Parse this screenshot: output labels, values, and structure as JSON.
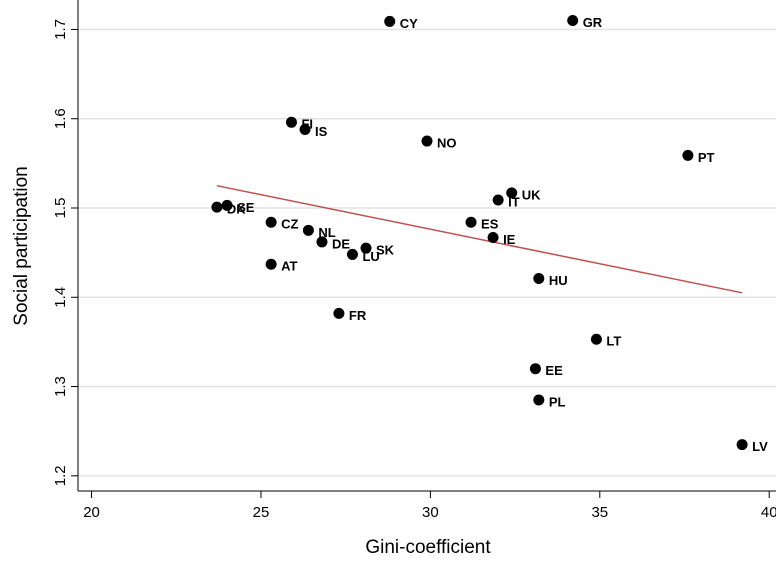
{
  "chart_data": {
    "type": "scatter",
    "x_label": "Gini-coefficient",
    "y_label": "Social participation",
    "labels": [
      "CY",
      "GR",
      "FI",
      "IS",
      "NO",
      "PT",
      "UK",
      "IT",
      "DK",
      "SE",
      "CZ",
      "ES",
      "NL",
      "IE",
      "DE",
      "SK",
      "LU",
      "AT",
      "HU",
      "FR",
      "LT",
      "EE",
      "PL",
      "LV"
    ],
    "x": [
      28.8,
      34.2,
      25.9,
      26.3,
      29.9,
      37.6,
      32.4,
      32.0,
      23.7,
      24.0,
      25.3,
      31.2,
      26.4,
      31.85,
      26.8,
      28.1,
      27.7,
      25.3,
      33.2,
      27.3,
      34.9,
      33.1,
      33.2,
      39.2
    ],
    "values": [
      1.709,
      1.71,
      1.596,
      1.588,
      1.575,
      1.559,
      1.517,
      1.509,
      1.501,
      1.503,
      1.484,
      1.484,
      1.475,
      1.467,
      1.462,
      1.455,
      1.448,
      1.437,
      1.421,
      1.382,
      1.353,
      1.32,
      1.285,
      1.235
    ],
    "color": "#000000",
    "fit": {
      "x": [
        23.7,
        39.2
      ],
      "y": [
        1.525,
        1.405
      ],
      "color": "#c0504d"
    },
    "xlim": [
      19.6,
      40.2
    ],
    "ylim": [
      1.183,
      1.733
    ],
    "xticks": [
      20,
      25,
      30,
      35,
      40
    ],
    "yticks": [
      1.2,
      1.3,
      1.4,
      1.5,
      1.6,
      1.7
    ],
    "grid": true
  }
}
